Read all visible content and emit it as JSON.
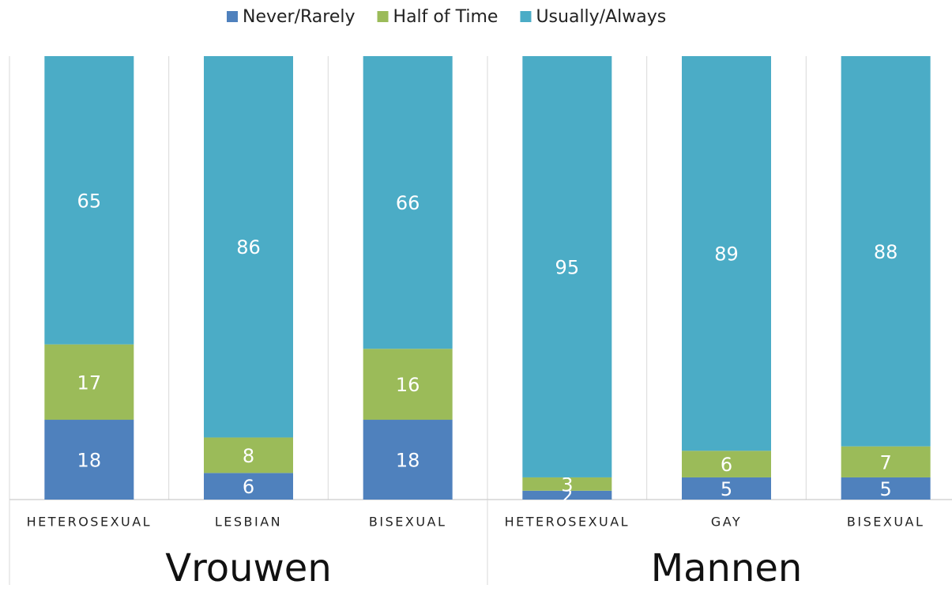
{
  "chart_data": {
    "type": "stacked-bar",
    "groups": [
      {
        "name": "Vrouwen",
        "categories": [
          "HETEROSEXUAL",
          "LESBIAN",
          "BISEXUAL"
        ]
      },
      {
        "name": "Mannen",
        "categories": [
          "HETEROSEXUAL",
          "GAY",
          "BISEXUAL"
        ]
      }
    ],
    "series": [
      {
        "name": "Never/Rarely",
        "color": "#4f81bd",
        "values": [
          18,
          6,
          18,
          2,
          5,
          5
        ]
      },
      {
        "name": "Half of Time",
        "color": "#9bbb59",
        "values": [
          17,
          8,
          16,
          3,
          6,
          7
        ]
      },
      {
        "name": "Usually/Always",
        "color": "#4bacc6",
        "values": [
          65,
          86,
          66,
          95,
          89,
          88
        ]
      }
    ],
    "ylim": [
      0,
      100
    ],
    "legend": "top"
  }
}
